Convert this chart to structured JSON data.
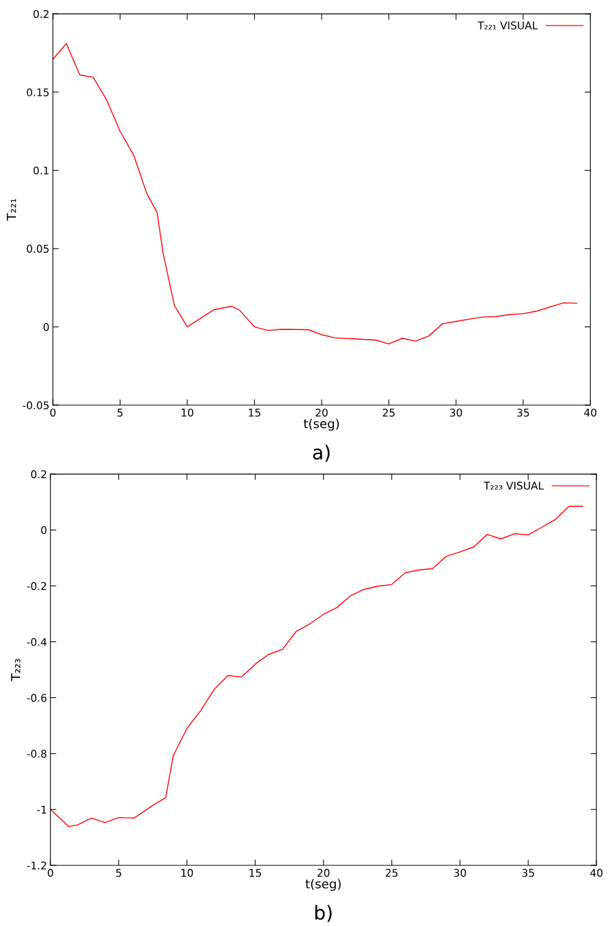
{
  "chart_data": [
    {
      "type": "line",
      "xlabel": "t(seg)",
      "ylabel": "T₂₂₁",
      "annotations": [
        "a)"
      ],
      "legend": "top right",
      "grid": false,
      "xlim": [
        0,
        40
      ],
      "xticks": [
        0,
        5,
        10,
        15,
        20,
        25,
        30,
        35,
        40
      ],
      "ylim": [
        -0.05,
        0.2
      ],
      "yticks": [
        -0.05,
        0,
        0.05,
        0.1,
        0.15,
        0.2
      ],
      "series": [
        {
          "name": "T₂₂₁ VISUAL",
          "color": "#ff0000",
          "x": [
            0,
            1,
            2,
            3,
            4,
            5,
            6,
            7,
            7.76,
            8.2,
            9.05,
            10,
            12,
            13.3,
            13.9,
            15,
            16,
            17,
            19,
            20,
            21,
            24,
            25,
            26,
            27,
            28,
            29,
            30,
            31,
            32,
            33,
            34,
            35,
            36,
            38,
            39
          ],
          "values": [
            0.171,
            0.181,
            0.161,
            0.1595,
            0.145,
            0.125,
            0.11,
            0.085,
            0.073,
            0.047,
            0.0136,
            0.0,
            0.011,
            0.0132,
            0.0106,
            0.0,
            -0.0023,
            -0.0016,
            -0.0018,
            -0.005,
            -0.007,
            -0.0084,
            -0.0109,
            -0.0073,
            -0.0091,
            -0.0057,
            0.002,
            0.0035,
            0.005,
            0.0063,
            0.0066,
            0.0079,
            0.0084,
            0.0101,
            0.0153,
            0.0151
          ]
        }
      ]
    },
    {
      "type": "line",
      "xlabel": "t(seg)",
      "ylabel": "T₂₂₃",
      "annotations": [
        "b)"
      ],
      "legend": "top right",
      "grid": false,
      "xlim": [
        0,
        40
      ],
      "xticks": [
        0,
        5,
        10,
        15,
        20,
        25,
        30,
        35,
        40
      ],
      "ylim": [
        -1.2,
        0.2
      ],
      "yticks": [
        -1.2,
        -1,
        -0.8,
        -0.6,
        -0.4,
        -0.2,
        0,
        0.2
      ],
      "series": [
        {
          "name": "T₂₂₃ VISUAL",
          "color": "#ff0000",
          "x": [
            0,
            1.33,
            2,
            3,
            4,
            5,
            6.13,
            7.54,
            8.44,
            9,
            10,
            11,
            12,
            13,
            14,
            15,
            16,
            17,
            18,
            19,
            20,
            21,
            22,
            23,
            24,
            25,
            26,
            27,
            28,
            29,
            30,
            31,
            32,
            33,
            34,
            35,
            36,
            37,
            38,
            39
          ],
          "values": [
            -1.0,
            -1.061,
            -1.055,
            -1.031,
            -1.047,
            -1.029,
            -1.031,
            -0.984,
            -0.958,
            -0.807,
            -0.71,
            -0.647,
            -0.57,
            -0.521,
            -0.526,
            -0.48,
            -0.445,
            -0.427,
            -0.363,
            -0.336,
            -0.302,
            -0.277,
            -0.235,
            -0.212,
            -0.201,
            -0.195,
            -0.153,
            -0.143,
            -0.138,
            -0.094,
            -0.0785,
            -0.061,
            -0.0157,
            -0.032,
            -0.0132,
            -0.0174,
            0.0099,
            0.038,
            0.085,
            0.085
          ]
        }
      ]
    }
  ]
}
